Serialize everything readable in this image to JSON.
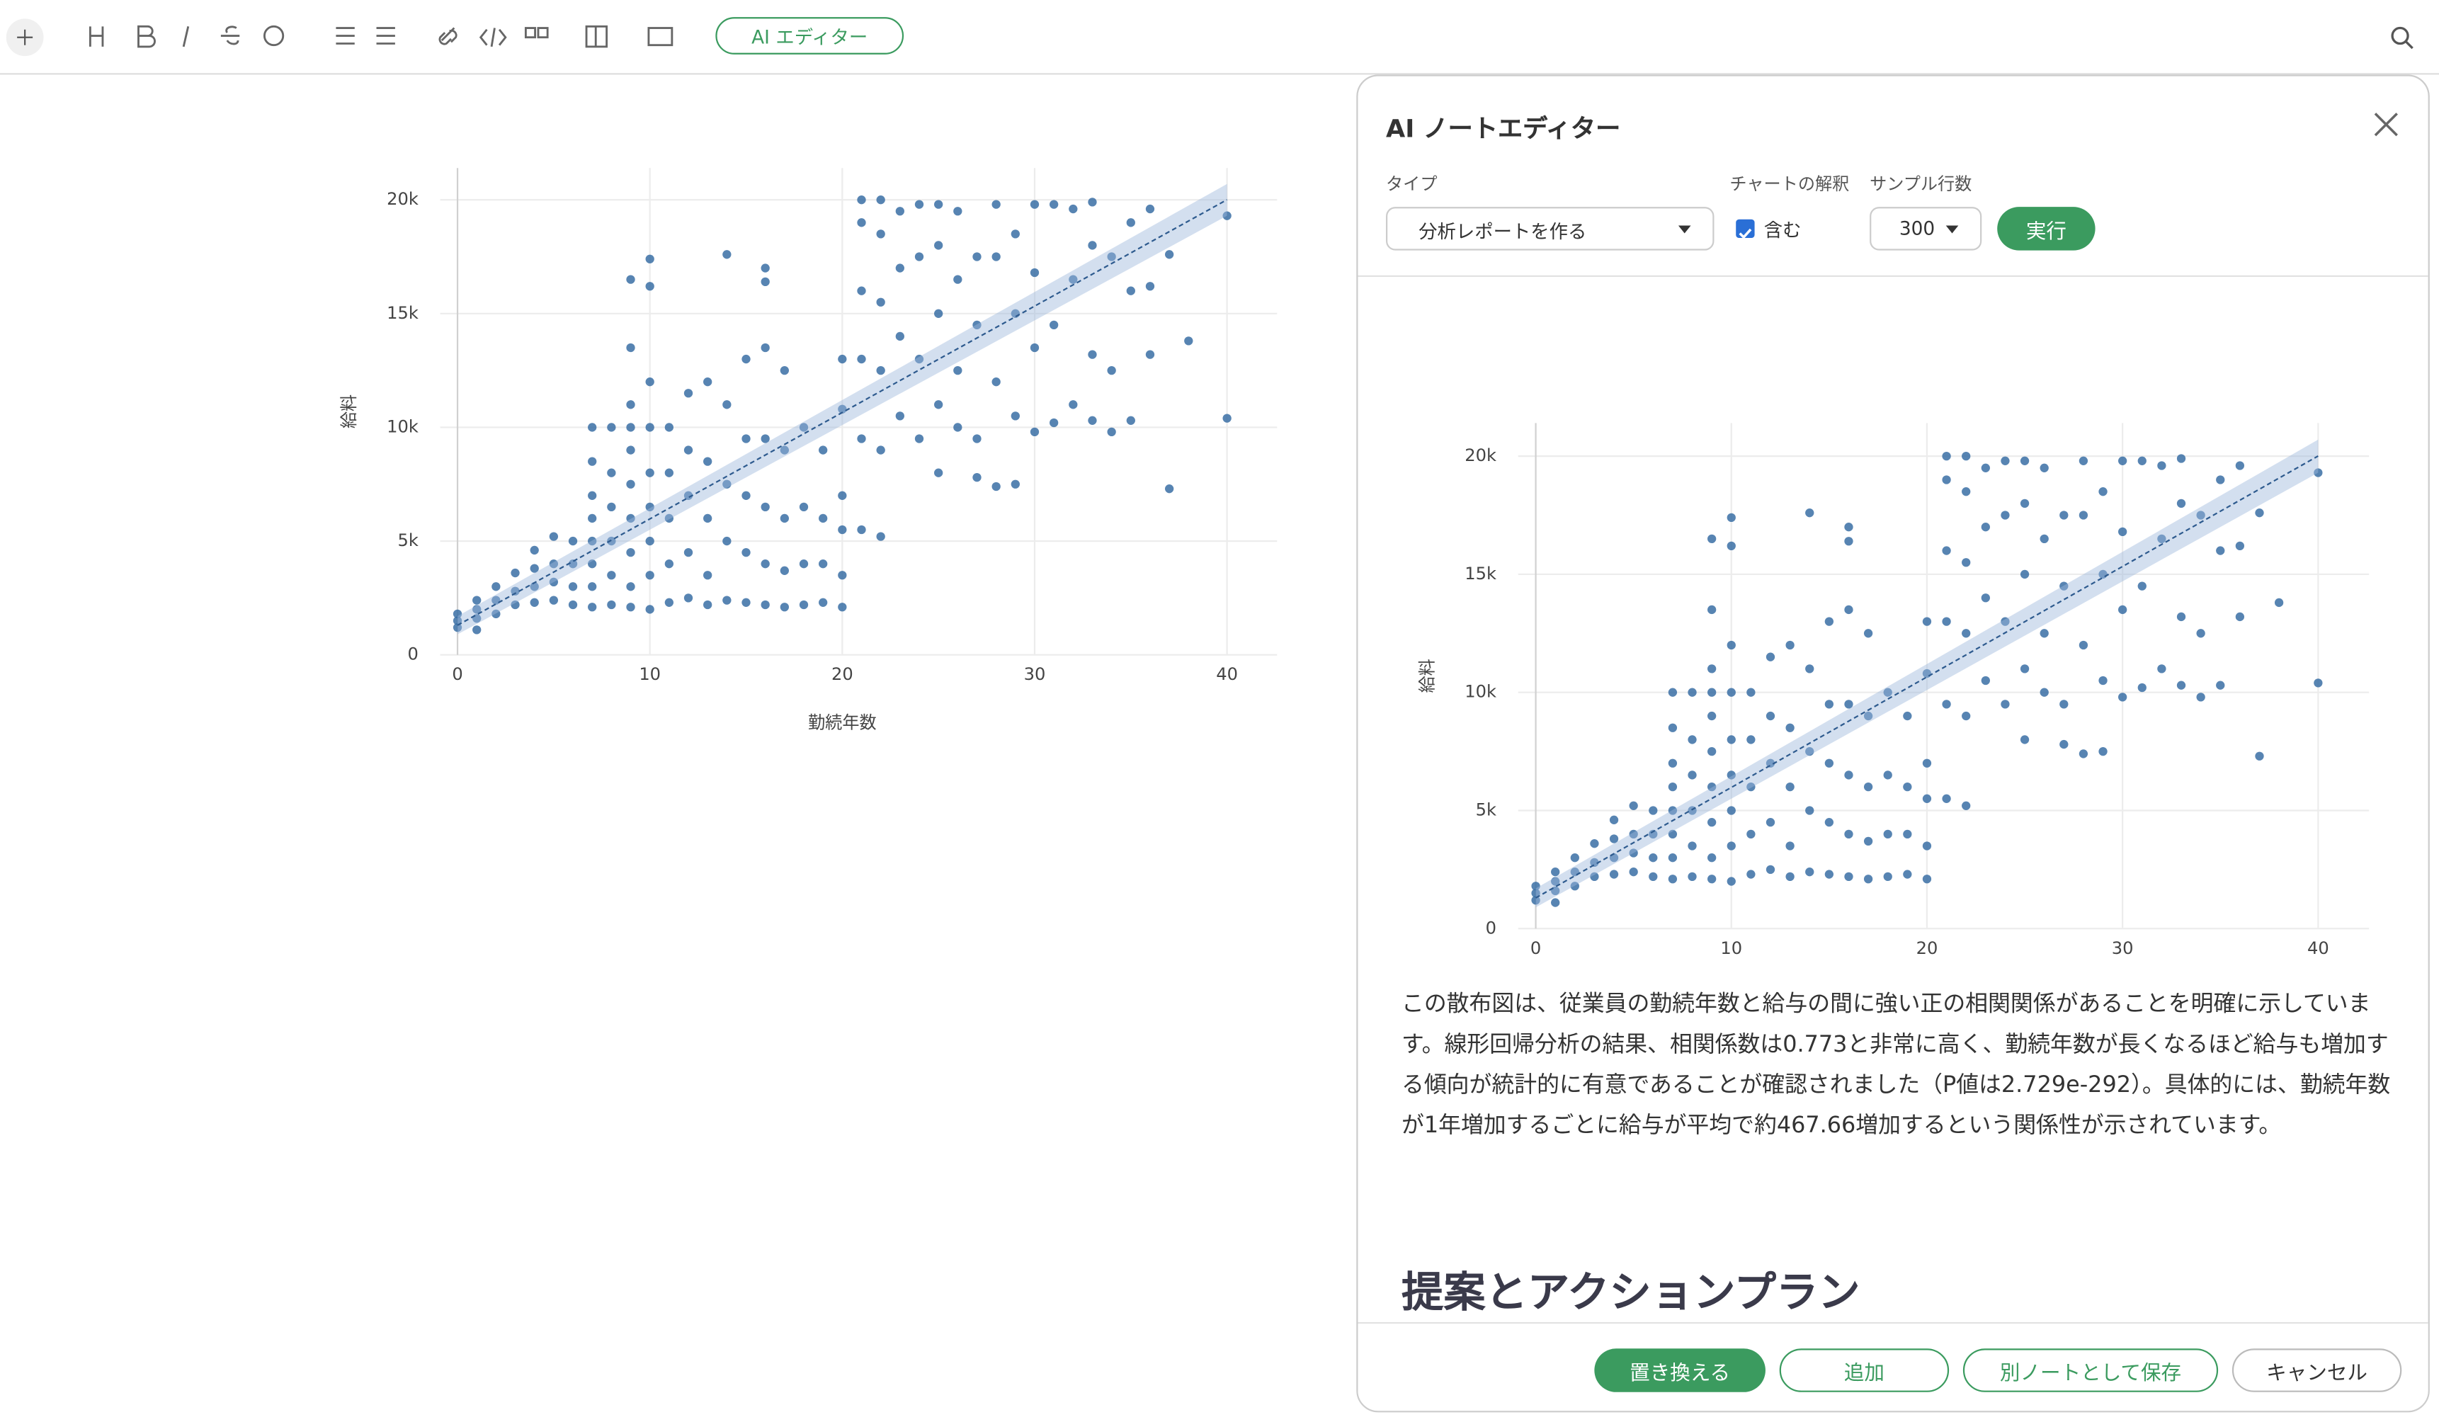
{
  "toolbar": {
    "ai_button": "AI エディター"
  },
  "chart_data": {
    "type": "scatter",
    "x_label": "勤続年数",
    "y_label": "給料",
    "color": "#3a6ea5",
    "grid": true,
    "xlim": [
      -0.9,
      42.6
    ],
    "ylim": [
      0,
      21400
    ],
    "xticks": [
      0,
      10,
      20,
      30,
      40
    ],
    "yticks": [
      0,
      {
        "value": 5000,
        "label": "5k"
      },
      {
        "value": 10000,
        "label": "10k"
      },
      {
        "value": 15000,
        "label": "15k"
      },
      {
        "value": 20000,
        "label": "20k"
      }
    ],
    "x": [
      0,
      0,
      0,
      1,
      1,
      1,
      1,
      2,
      2,
      2,
      3,
      3,
      3,
      4,
      4,
      4,
      4,
      5,
      5,
      5,
      5,
      6,
      6,
      6,
      6,
      7,
      7,
      7,
      7,
      7,
      7,
      7,
      7,
      8,
      8,
      8,
      8,
      8,
      8,
      9,
      9,
      9,
      9,
      9,
      9,
      9,
      9,
      9,
      9,
      10,
      10,
      10,
      10,
      10,
      10,
      10,
      10,
      10,
      11,
      11,
      11,
      11,
      11,
      12,
      12,
      12,
      12,
      12,
      13,
      13,
      13,
      13,
      13,
      14,
      14,
      14,
      14,
      14,
      15,
      15,
      15,
      15,
      15,
      16,
      16,
      16,
      16,
      16,
      16,
      16,
      17,
      17,
      17,
      17,
      17,
      18,
      18,
      18,
      18,
      19,
      19,
      19,
      19,
      20,
      20,
      20,
      20,
      20,
      20,
      21,
      21,
      21,
      21,
      21,
      21,
      22,
      22,
      22,
      22,
      22,
      22,
      23,
      23,
      23,
      23,
      24,
      24,
      24,
      24,
      25,
      25,
      25,
      25,
      25,
      26,
      26,
      26,
      26,
      27,
      27,
      27,
      27,
      28,
      28,
      28,
      28,
      29,
      29,
      29,
      29,
      30,
      30,
      30,
      30,
      31,
      31,
      31,
      32,
      32,
      32,
      33,
      33,
      33,
      33,
      34,
      34,
      34,
      35,
      35,
      35,
      36,
      36,
      36,
      37,
      37,
      38,
      40,
      40
    ],
    "values": [
      1200,
      1500,
      1800,
      1100,
      1600,
      2000,
      2400,
      1800,
      2400,
      3000,
      2200,
      2800,
      3600,
      2300,
      3000,
      3800,
      4600,
      2400,
      3200,
      4000,
      5200,
      2200,
      3000,
      4000,
      5000,
      2100,
      3000,
      4000,
      5000,
      6000,
      7000,
      8500,
      10000,
      2200,
      3500,
      5000,
      6500,
      8000,
      10000,
      2100,
      3000,
      4500,
      6000,
      7500,
      9000,
      10000,
      11000,
      13500,
      16500,
      2000,
      3500,
      5000,
      6500,
      8000,
      10000,
      12000,
      16200,
      17400,
      2300,
      4000,
      6000,
      8000,
      10000,
      2500,
      4500,
      7000,
      9000,
      11500,
      2200,
      3500,
      6000,
      8500,
      12000,
      2400,
      5000,
      7500,
      11000,
      17600,
      2300,
      4500,
      7000,
      9500,
      13000,
      2200,
      4000,
      6500,
      9500,
      13500,
      16400,
      17000,
      2100,
      3700,
      6000,
      9000,
      12500,
      2200,
      4000,
      6500,
      10000,
      2300,
      4000,
      6000,
      9000,
      2100,
      3500,
      5500,
      7000,
      10800,
      13000,
      5500,
      9500,
      13000,
      16000,
      19000,
      20000,
      5200,
      9000,
      12500,
      15500,
      18500,
      20000,
      10500,
      14000,
      17000,
      19500,
      9500,
      13000,
      17500,
      19800,
      8000,
      11000,
      15000,
      18000,
      19800,
      10000,
      12500,
      16500,
      19500,
      7800,
      9500,
      14500,
      17500,
      7400,
      12000,
      17500,
      19800,
      7500,
      10500,
      15000,
      18500,
      9800,
      13500,
      16800,
      19800,
      10200,
      14500,
      19800,
      11000,
      16500,
      19600,
      10300,
      13200,
      18000,
      19900,
      9800,
      12500,
      17500,
      10300,
      16000,
      19000,
      13200,
      16200,
      19600,
      7300,
      17600,
      13800,
      10400,
      19300
    ],
    "trend_x": [
      0,
      40
    ],
    "trend_y": [
      1300,
      20006
    ],
    "band_lower": [
      900,
      19300
    ],
    "band_upper": [
      1700,
      20700
    ]
  },
  "panel": {
    "title": "AI ノートエディター",
    "type_label": "タイプ",
    "type_value": "分析レポートを作る",
    "interpret_label": "チャートの解釈",
    "interpret_value": "含む",
    "sample_label": "サンプル行数",
    "sample_value": "300",
    "run_button": "実行",
    "paragraph": "この散布図は、従業員の勤続年数と給与の間に強い正の相関関係があることを明確に示しています。線形回帰分析の結果、相関係数は0.773と非常に高く、勤続年数が長くなるほど給与も増加する傾向が統計的に有意であることが確認されました（P値は2.729e-292）。具体的には、勤続年数が1年増加するごとに給与が平均で約467.66増加するという関係性が示されています。",
    "heading": "提案とアクションプラン",
    "buttons": [
      "置き換える",
      "追加",
      "別ノートとして保存",
      "キャンセル"
    ]
  }
}
